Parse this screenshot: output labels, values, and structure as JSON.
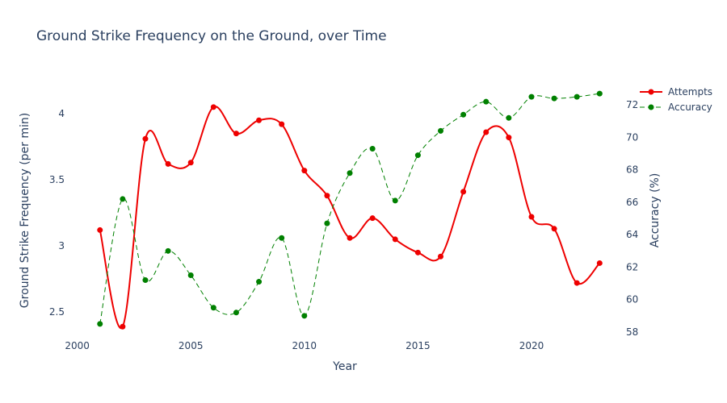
{
  "chart_data": {
    "type": "line",
    "title": "Ground Strike Frequency on the Ground, over Time",
    "xlabel": "Year",
    "ylabel_left": "Ground Strike Frequency (per min)",
    "ylabel_right": "Accuracy (%)",
    "x_ticks": [
      2000,
      2005,
      2010,
      2015,
      2020
    ],
    "y_left_ticks": [
      2.5,
      3,
      3.5,
      4
    ],
    "y_right_ticks": [
      58,
      60,
      62,
      64,
      66,
      68,
      70,
      72
    ],
    "xlim": [
      1999.8,
      2023.7
    ],
    "ylim_left": [
      2.3,
      4.25
    ],
    "ylim_right": [
      57.6,
      73.5
    ],
    "x": [
      2001,
      2002,
      2003,
      2004,
      2005,
      2006,
      2007,
      2008,
      2009,
      2010,
      2011,
      2012,
      2013,
      2014,
      2015,
      2016,
      2017,
      2018,
      2019,
      2020,
      2021,
      2022,
      2023
    ],
    "series": [
      {
        "name": "Attempts",
        "axis": "left",
        "color": "#ee0000",
        "line": "solid",
        "values": [
          3.12,
          2.39,
          3.81,
          3.62,
          3.63,
          4.05,
          3.85,
          3.95,
          3.92,
          3.57,
          3.38,
          3.06,
          3.21,
          3.05,
          2.95,
          2.92,
          3.41,
          3.86,
          3.82,
          3.22,
          3.13,
          2.72,
          2.87
        ]
      },
      {
        "name": "Accuracy",
        "axis": "right",
        "color": "#008000",
        "line": "dashed",
        "values": [
          58.5,
          66.2,
          61.2,
          63.0,
          61.5,
          59.5,
          59.2,
          61.1,
          63.8,
          59.0,
          64.7,
          67.8,
          69.3,
          66.1,
          68.9,
          70.4,
          71.4,
          72.2,
          71.2,
          72.5,
          72.4,
          72.5,
          72.7
        ]
      }
    ],
    "legend_position": "top-right",
    "grid": false
  }
}
